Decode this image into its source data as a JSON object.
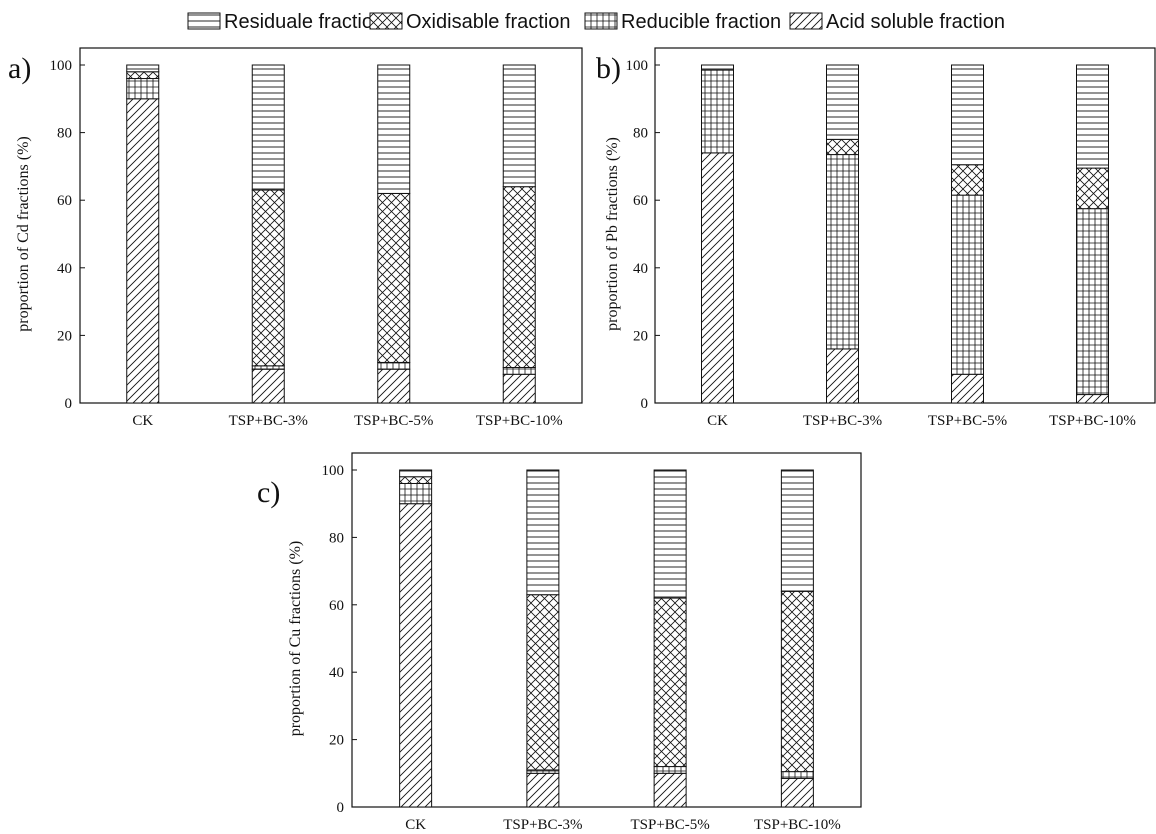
{
  "legend": [
    {
      "key": "residual",
      "label": "Residuale fraction",
      "pattern": "horizontal-lines"
    },
    {
      "key": "oxidisable",
      "label": "Oxidisable fraction",
      "pattern": "crosshatch"
    },
    {
      "key": "reducible",
      "label": "Reducible fraction",
      "pattern": "grid"
    },
    {
      "key": "acid",
      "label": "Acid soluble fraction",
      "pattern": "diagonal-lines"
    }
  ],
  "chart_data": [
    {
      "type": "bar",
      "stacked": true,
      "panel_label": "a)",
      "ylabel": "proportion of Cd fractions (%)",
      "ylim": [
        0,
        100
      ],
      "yticks": [
        0,
        20,
        40,
        60,
        80,
        100
      ],
      "categories": [
        "CK",
        "TSP+BC-3%",
        "TSP+BC-5%",
        "TSP+BC-10%"
      ],
      "series": [
        {
          "key": "acid",
          "name": "Acid soluble fraction",
          "values": [
            90,
            10,
            10,
            8.5
          ]
        },
        {
          "key": "reducible",
          "name": "Reducible fraction",
          "values": [
            6,
            1,
            2,
            2
          ]
        },
        {
          "key": "oxidisable",
          "name": "Oxidisable fraction",
          "values": [
            2,
            52,
            50,
            53.5
          ]
        },
        {
          "key": "residual",
          "name": "Residuale fraction",
          "values": [
            2,
            37,
            38,
            36
          ]
        }
      ]
    },
    {
      "type": "bar",
      "stacked": true,
      "panel_label": "b)",
      "ylabel": "proportion of Pb fractions (%)",
      "ylim": [
        0,
        100
      ],
      "yticks": [
        0,
        20,
        40,
        60,
        80,
        100
      ],
      "categories": [
        "CK",
        "TSP+BC-3%",
        "TSP+BC-5%",
        "TSP+BC-10%"
      ],
      "series": [
        {
          "key": "acid",
          "name": "Acid soluble fraction",
          "values": [
            74,
            16,
            8.5,
            2.5
          ]
        },
        {
          "key": "reducible",
          "name": "Reducible fraction",
          "values": [
            24.5,
            57.5,
            53,
            55
          ]
        },
        {
          "key": "oxidisable",
          "name": "Oxidisable fraction",
          "values": [
            0,
            4.5,
            9,
            12
          ]
        },
        {
          "key": "residual",
          "name": "Residuale fraction",
          "values": [
            1.5,
            22,
            29.5,
            30.5
          ]
        }
      ]
    },
    {
      "type": "bar",
      "stacked": true,
      "panel_label": "c)",
      "ylabel": "proportion of Cu fractions (%)",
      "ylim": [
        0,
        100
      ],
      "yticks": [
        0,
        20,
        40,
        60,
        80,
        100
      ],
      "categories": [
        "CK",
        "TSP+BC-3%",
        "TSP+BC-5%",
        "TSP+BC-10%"
      ],
      "series": [
        {
          "key": "acid",
          "name": "Acid soluble fraction",
          "values": [
            90,
            10,
            10,
            8.5
          ]
        },
        {
          "key": "reducible",
          "name": "Reducible fraction",
          "values": [
            6,
            1,
            2,
            2
          ]
        },
        {
          "key": "oxidisable",
          "name": "Oxidisable fraction",
          "values": [
            2,
            52,
            50,
            53.5
          ]
        },
        {
          "key": "residual",
          "name": "Residuale fraction",
          "values": [
            2,
            37,
            38,
            36
          ]
        }
      ]
    }
  ]
}
